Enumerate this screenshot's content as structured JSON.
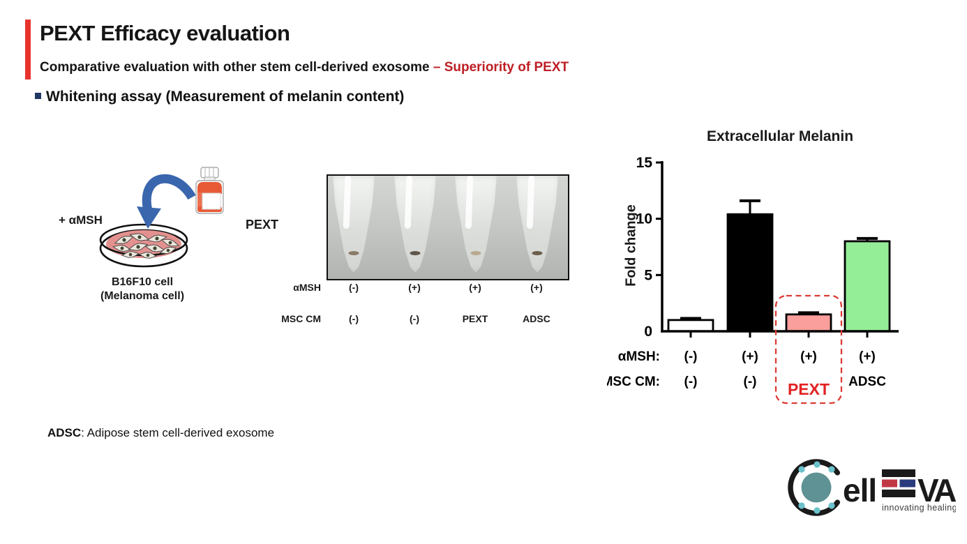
{
  "slide": {
    "title": "PEXT Efficacy evaluation",
    "subtitle_black": "Comparative evaluation with other stem cell-derived exosome ",
    "subtitle_red": "– Superiority of PEXT",
    "bullet_text": "Whitening assay (Measurement of melanin content)",
    "footnote_term": "ADSC",
    "footnote_rest": ": Adipose stem cell-derived exosome"
  },
  "diagram": {
    "treatment_label": "+ αMSH",
    "cell_label_line1": "B16F10 cell",
    "cell_label_line2": "(Melanoma cell)",
    "bottle_label": "PEXT"
  },
  "tube_panel": {
    "rows": [
      {
        "header": "αMSH",
        "values": [
          "(-)",
          "(+)",
          "(+)",
          "(+)"
        ]
      },
      {
        "header": "MSC CM",
        "values": [
          "(-)",
          "(-)",
          "PEXT",
          "ADSC"
        ]
      }
    ]
  },
  "chart_data": {
    "type": "bar",
    "title": "Extracellular Melanin",
    "ylabel": "Fold change",
    "ylim": [
      0,
      15
    ],
    "yticks": [
      0,
      5,
      10,
      15
    ],
    "grid": false,
    "legend": null,
    "categories": [
      "αMSH(-) / MSC CM(-)",
      "αMSH(+) / MSC CM(-)",
      "αMSH(+) / PEXT",
      "αMSH(+) / ADSC"
    ],
    "values": [
      1.0,
      10.4,
      1.5,
      8.0
    ],
    "errors": [
      0.15,
      1.2,
      0.15,
      0.25
    ],
    "bar_colors": [
      "#FFFFFF",
      "#000000",
      "#FB9F9C",
      "#94EE97"
    ],
    "x_rows": [
      {
        "header": "αMSH:",
        "values": [
          "(-)",
          "(+)",
          "(+)",
          "(+)"
        ]
      },
      {
        "header": "MSC CM:",
        "values": [
          "(-)",
          "(-)",
          "PEXT",
          "ADSC"
        ]
      }
    ],
    "highlight": {
      "index": 2,
      "label": "PEXT",
      "text_color": "#E32222",
      "box_color": "#DC3C35"
    }
  },
  "logo": {
    "part_ell": "ell",
    "part_va": "VA",
    "tagline": "innovating healing"
  },
  "colors": {
    "accent_red": "#E8332D",
    "subtitle_red": "#BE1E24",
    "bullet_navy": "#1F3864",
    "arrow_blue": "#3A66AE",
    "dish_pink": "#E2918F"
  }
}
